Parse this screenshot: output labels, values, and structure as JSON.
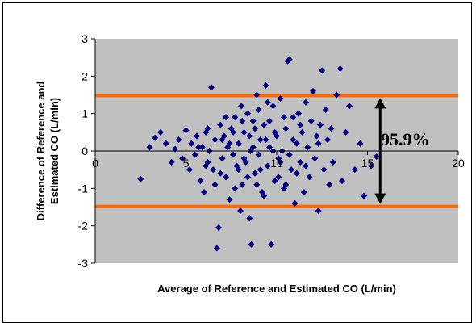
{
  "chart_data": {
    "type": "scatter",
    "xlabel": "Average of Reference and Estimated CO (L/min)",
    "ylabel_line1": "Difference of Reference and",
    "ylabel_line2": "Estimated CO (L/min)",
    "xlim": [
      0,
      20
    ],
    "ylim": [
      -3,
      3
    ],
    "xticks": [
      "0",
      "5",
      "10",
      "15",
      "20"
    ],
    "yticks": [
      "-3",
      "-2",
      "-1",
      "0",
      "1",
      "2",
      "3"
    ],
    "limit_lines": [
      1.48,
      -1.48
    ],
    "annotation": "95.9%",
    "annotation_arrow_x": 15.7,
    "grid": false,
    "plot_background": "#c0c0c0",
    "marker_color": "#000080",
    "limit_line_color": "#ff6600",
    "points": [
      [
        2.5,
        -0.75
      ],
      [
        3.0,
        0.1
      ],
      [
        3.3,
        0.35
      ],
      [
        3.6,
        0.5
      ],
      [
        3.9,
        0.2
      ],
      [
        4.2,
        -0.3
      ],
      [
        4.4,
        0.05
      ],
      [
        4.6,
        0.3
      ],
      [
        4.8,
        -0.2
      ],
      [
        5.0,
        0.55
      ],
      [
        5.2,
        -0.5
      ],
      [
        5.3,
        0.2
      ],
      [
        5.5,
        -0.1
      ],
      [
        5.6,
        0.4
      ],
      [
        5.8,
        -0.8
      ],
      [
        5.9,
        0.1
      ],
      [
        6.0,
        -1.1
      ],
      [
        6.1,
        0.5
      ],
      [
        6.2,
        -0.3
      ],
      [
        6.3,
        0.0
      ],
      [
        6.4,
        1.7
      ],
      [
        6.5,
        -0.5
      ],
      [
        6.6,
        0.3
      ],
      [
        6.7,
        -2.6
      ],
      [
        6.8,
        -2.05
      ],
      [
        6.9,
        0.7
      ],
      [
        7.0,
        -0.2
      ],
      [
        7.1,
        0.4
      ],
      [
        7.2,
        -0.7
      ],
      [
        7.3,
        0.1
      ],
      [
        7.4,
        -1.3
      ],
      [
        7.5,
        0.6
      ],
      [
        7.6,
        -0.1
      ],
      [
        7.7,
        0.9
      ],
      [
        7.8,
        -0.4
      ],
      [
        7.9,
        0.2
      ],
      [
        8.0,
        -1.6
      ],
      [
        8.05,
        1.2
      ],
      [
        8.1,
        -0.9
      ],
      [
        8.2,
        0.5
      ],
      [
        8.3,
        -0.3
      ],
      [
        8.4,
        1.0
      ],
      [
        8.5,
        -1.8
      ],
      [
        8.55,
        0.0
      ],
      [
        8.6,
        -2.5
      ],
      [
        8.7,
        0.8
      ],
      [
        8.8,
        -0.6
      ],
      [
        8.9,
        1.5
      ],
      [
        9.0,
        -0.1
      ],
      [
        9.1,
        0.3
      ],
      [
        9.2,
        -1.1
      ],
      [
        9.3,
        0.7
      ],
      [
        9.4,
        1.75
      ],
      [
        9.5,
        -0.4
      ],
      [
        9.6,
        0.1
      ],
      [
        9.7,
        -2.5
      ],
      [
        9.8,
        1.2
      ],
      [
        9.9,
        -0.8
      ],
      [
        10.0,
        0.4
      ],
      [
        10.1,
        -0.2
      ],
      [
        10.2,
        1.4
      ],
      [
        10.3,
        0.0
      ],
      [
        10.4,
        -1.0
      ],
      [
        10.5,
        0.6
      ],
      [
        10.6,
        2.4
      ],
      [
        10.7,
        2.45
      ],
      [
        10.8,
        -0.5
      ],
      [
        10.9,
        0.9
      ],
      [
        11.0,
        -1.4
      ],
      [
        11.1,
        0.2
      ],
      [
        11.2,
        1.0
      ],
      [
        11.3,
        -0.3
      ],
      [
        11.4,
        0.5
      ],
      [
        11.5,
        -1.1
      ],
      [
        11.6,
        1.3
      ],
      [
        11.7,
        0.1
      ],
      [
        11.8,
        -0.7
      ],
      [
        11.9,
        0.8
      ],
      [
        12.0,
        1.6
      ],
      [
        12.1,
        -0.2
      ],
      [
        12.2,
        0.4
      ],
      [
        12.3,
        -1.6
      ],
      [
        12.4,
        0.7
      ],
      [
        12.5,
        2.15
      ],
      [
        12.6,
        -0.5
      ],
      [
        12.7,
        1.1
      ],
      [
        12.8,
        0.3
      ],
      [
        12.9,
        -0.9
      ],
      [
        13.0,
        0.6
      ],
      [
        13.1,
        -0.3
      ],
      [
        13.3,
        1.5
      ],
      [
        13.5,
        2.2
      ],
      [
        13.6,
        -0.8
      ],
      [
        13.8,
        0.5
      ],
      [
        14.0,
        1.2
      ],
      [
        14.3,
        -0.5
      ],
      [
        14.6,
        0.2
      ],
      [
        14.8,
        -1.2
      ],
      [
        15.2,
        -0.4
      ],
      [
        15.5,
        -0.15
      ],
      [
        7.2,
        0.9
      ],
      [
        7.6,
        0.5
      ],
      [
        8.2,
        -0.2
      ],
      [
        8.7,
        0.1
      ],
      [
        9.1,
        -0.5
      ],
      [
        9.4,
        0.3
      ],
      [
        9.8,
        0.0
      ],
      [
        10.2,
        -0.3
      ],
      [
        8.5,
        0.4
      ],
      [
        8.9,
        -0.9
      ],
      [
        9.3,
        -1.2
      ],
      [
        7.9,
        -0.5
      ],
      [
        10.4,
        0.9
      ],
      [
        10.9,
        0.3
      ],
      [
        11.3,
        0.7
      ],
      [
        6.9,
        -0.6
      ],
      [
        7.4,
        0.2
      ],
      [
        8.1,
        0.8
      ],
      [
        8.8,
        0.6
      ],
      [
        9.6,
        0.8
      ],
      [
        10.1,
        -0.7
      ],
      [
        10.7,
        -0.1
      ],
      [
        11.1,
        -0.6
      ],
      [
        6.2,
        0.6
      ],
      [
        6.6,
        -0.9
      ],
      [
        7.0,
        0.3
      ],
      [
        7.7,
        -1.0
      ],
      [
        8.4,
        -0.7
      ],
      [
        9.0,
        1.1
      ],
      [
        9.5,
        1.3
      ],
      [
        9.9,
        0.5
      ],
      [
        10.5,
        -0.9
      ],
      [
        11.6,
        -0.4
      ],
      [
        12.3,
        0.2
      ],
      [
        5.7,
        0.1
      ],
      [
        6.1,
        -0.4
      ]
    ]
  }
}
